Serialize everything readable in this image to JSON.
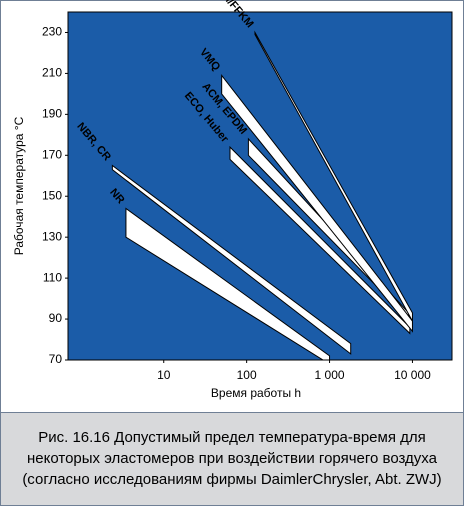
{
  "chart_data": {
    "type": "band",
    "xlabel": "Время работы h",
    "ylabel": "Рабочая температура °C",
    "xlog": true,
    "xlim": [
      0.7,
      30000
    ],
    "ylim": [
      70,
      240
    ],
    "xticks": [
      10,
      100,
      {
        "value": 1000,
        "label": "1 000"
      },
      {
        "value": 10000,
        "label": "10 000"
      }
    ],
    "yticks": [
      70,
      90,
      110,
      130,
      150,
      170,
      190,
      210,
      230
    ],
    "background": "#1b5ca8",
    "color": "#ffffff",
    "series": [
      {
        "name": "NR",
        "x": [
          3.5,
          1000
        ],
        "upper": [
          144,
          72
        ],
        "lower": [
          130,
          68
        ]
      },
      {
        "name": "NBR, CR",
        "x": [
          2.4,
          1800
        ],
        "upper": [
          165,
          78
        ],
        "lower": [
          163,
          73
        ]
      },
      {
        "name": "ECO, Huber",
        "x": [
          63,
          9300
        ],
        "upper": [
          174,
          86
        ],
        "lower": [
          168,
          83
        ]
      },
      {
        "name": "ACM, EPDM",
        "x": [
          105,
          9000
        ],
        "upper": [
          178,
          93
        ],
        "lower": [
          170,
          90
        ]
      },
      {
        "name": "VMQ",
        "x": [
          50,
          10000
        ],
        "upper": [
          209,
          89
        ],
        "lower": [
          200,
          84
        ]
      },
      {
        "name": "FKM/FFKM",
        "x": [
          126,
          10000
        ],
        "upper": [
          230,
          93
        ],
        "lower": [
          229,
          89
        ]
      }
    ]
  },
  "caption": "Рис. 16.16 Допустимый предел температура-время для некоторых эластомеров при воздействии горячего воздуха (согласно исследованиям фирмы DaimlerChrysler, Abt. ZWJ)"
}
